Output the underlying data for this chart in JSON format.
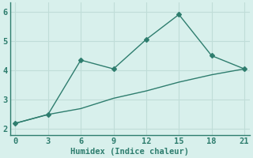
{
  "line1_x": [
    0,
    3,
    6,
    9,
    12,
    15,
    18,
    21
  ],
  "line1_y": [
    2.2,
    2.5,
    4.35,
    4.05,
    5.05,
    5.9,
    4.5,
    4.05
  ],
  "line2_x": [
    0,
    3,
    6,
    9,
    12,
    15,
    18,
    21
  ],
  "line2_y": [
    2.2,
    2.5,
    2.7,
    3.05,
    3.3,
    3.6,
    3.85,
    4.05
  ],
  "line_color": "#2e7d6e",
  "bg_color": "#d8f0ec",
  "grid_color": "#c0ddd8",
  "xlabel": "Humidex (Indice chaleur)",
  "xlim": [
    -0.5,
    21.5
  ],
  "ylim": [
    1.8,
    6.3
  ],
  "xticks": [
    0,
    3,
    6,
    9,
    12,
    15,
    18,
    21
  ],
  "yticks": [
    2,
    3,
    4,
    5,
    6
  ],
  "xlabel_fontsize": 7.5,
  "tick_fontsize": 7.5,
  "linewidth": 1.0,
  "markersize": 3.0
}
